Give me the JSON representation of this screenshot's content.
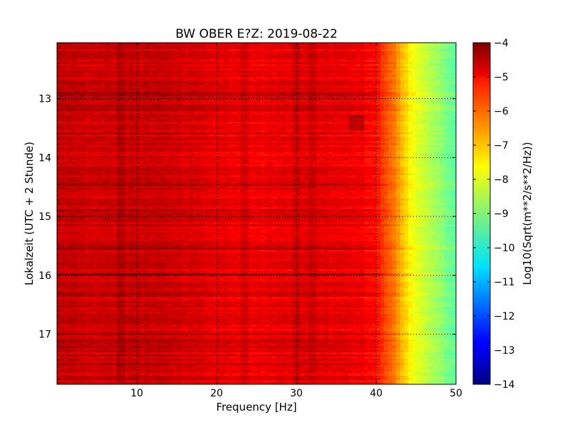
{
  "chart_data": {
    "type": "heatmap",
    "title": "BW OBER E?Z: 2019-08-22",
    "xlabel": "Frequency [Hz]",
    "ylabel": "Lokalzeit (UTC + 2 Stunde)",
    "xlim": [
      0,
      50
    ],
    "ylim": [
      17.85,
      12.05
    ],
    "x_ticks": [
      10,
      20,
      30,
      40,
      50
    ],
    "y_ticks": [
      13,
      14,
      15,
      16,
      17
    ],
    "grid": true,
    "colorbar": {
      "label": "Log10(Sqrt(m**2/s**2/Hz))",
      "colormap": "jet",
      "range": [
        -14,
        -4
      ],
      "ticks": [
        -4,
        -5,
        -6,
        -7,
        -8,
        -9,
        -10,
        -11,
        -12,
        -13,
        -14
      ]
    },
    "spectral_profile": {
      "frequency_hz": [
        0,
        5,
        10,
        15,
        20,
        25,
        30,
        35,
        38,
        40,
        42,
        44,
        46,
        48,
        50
      ],
      "log10_amplitude": [
        -4.7,
        -4.8,
        -4.7,
        -4.8,
        -5.0,
        -5.1,
        -5.0,
        -5.0,
        -5.1,
        -5.4,
        -6.3,
        -7.6,
        -8.3,
        -8.8,
        -9.4
      ]
    },
    "features": [
      {
        "frequency_hz": 8.0,
        "note": "vertical line"
      },
      {
        "frequency_hz": 23.5,
        "note": "vertical line"
      },
      {
        "frequency_hz": 30.0,
        "note": "vertical line"
      },
      {
        "frequency_hz": 32.0,
        "note": "vertical line"
      },
      {
        "frequency_hz": 37.5,
        "note": "blob near 13.4"
      }
    ]
  }
}
